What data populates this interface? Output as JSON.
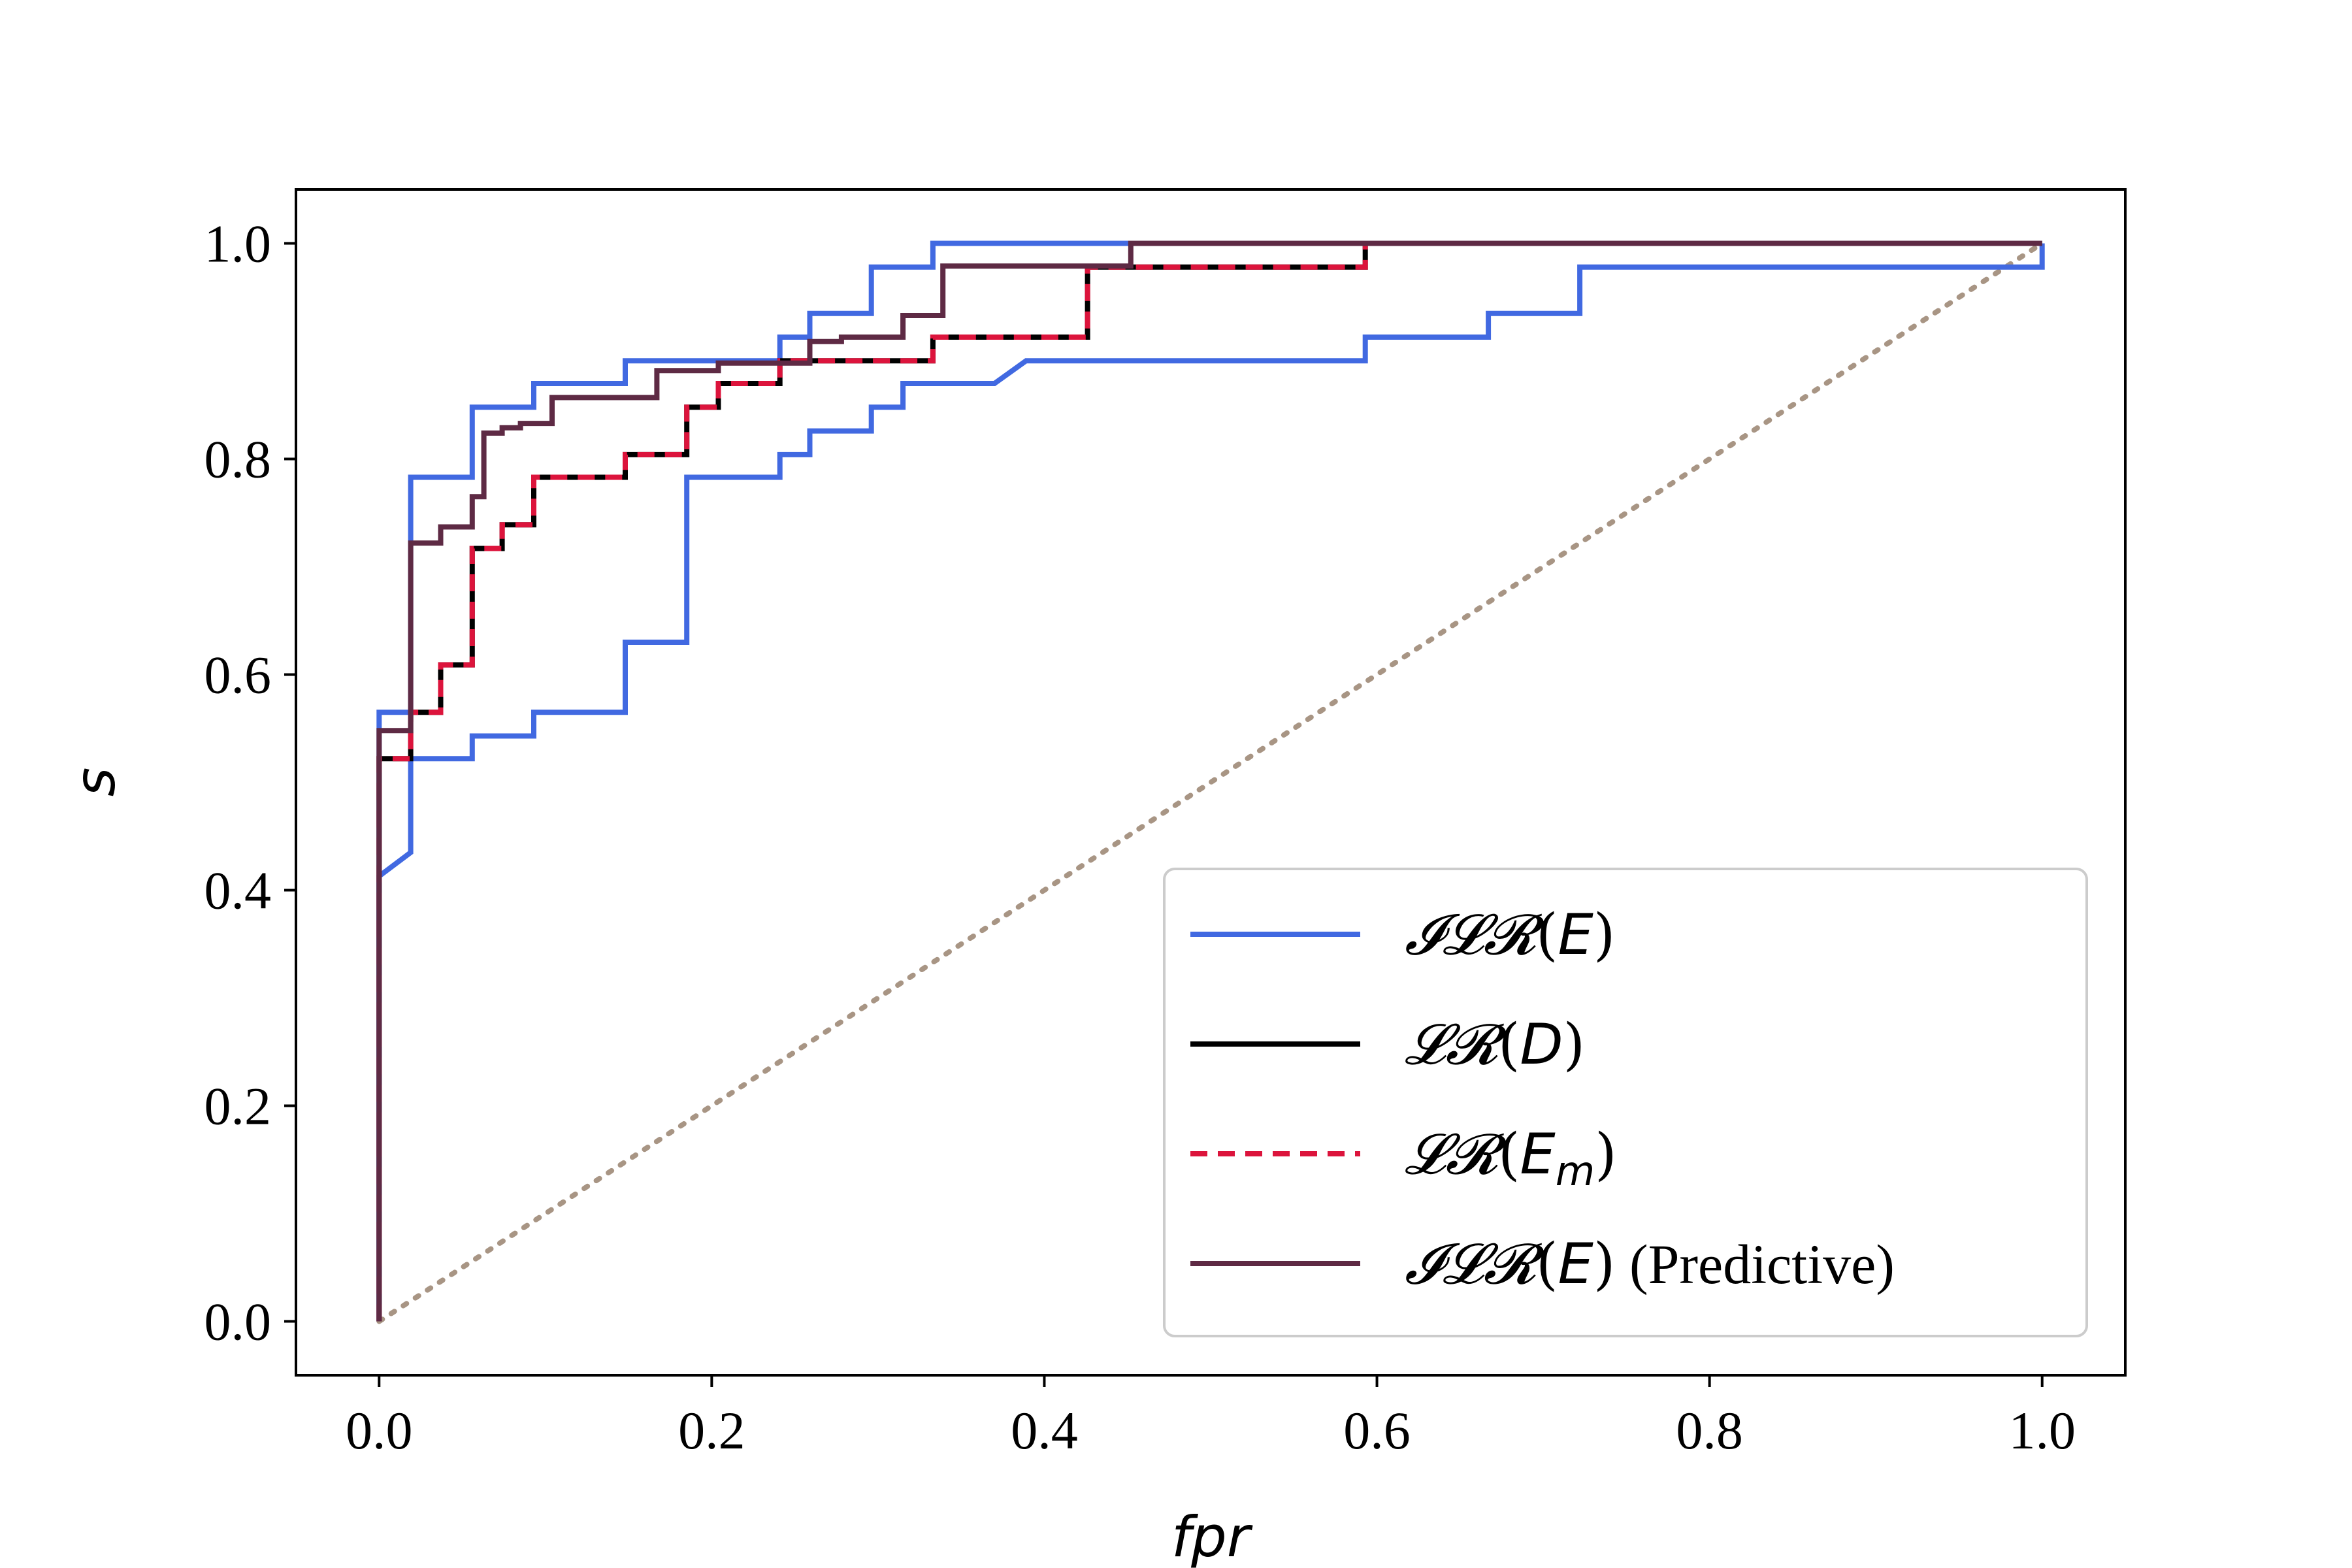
{
  "chart_data": {
    "type": "line",
    "xlabel": "fpr",
    "ylabel": "s",
    "xlim": [
      -0.05,
      1.05
    ],
    "ylim": [
      -0.05,
      1.05
    ],
    "xticks": [
      "0.0",
      "0.2",
      "0.4",
      "0.6",
      "0.8",
      "1.0"
    ],
    "yticks": [
      "0.0",
      "0.2",
      "0.4",
      "0.6",
      "0.8",
      "1.0"
    ],
    "grid": false,
    "legend_position": "lower-right",
    "series": [
      {
        "name": "ILR(E)",
        "legend": {
          "script": "𝓘𝓛𝓡",
          "arg": "E",
          "sub": "",
          "suffix": ""
        },
        "color": "#4169E1",
        "style": "solid",
        "step": true,
        "x": [
          0.0,
          0.0,
          0.019,
          0.019,
          0.056,
          0.056,
          0.093,
          0.093,
          0.148,
          0.148,
          0.185,
          0.185,
          0.241,
          0.241,
          0.259,
          0.259,
          0.296,
          0.296,
          0.315,
          0.315,
          0.37,
          0.389,
          0.593,
          0.593,
          0.667,
          0.667,
          0.722,
          0.722,
          1.0,
          1.0
        ],
        "y": [
          0.0,
          0.413,
          0.435,
          0.522,
          0.522,
          0.543,
          0.543,
          0.565,
          0.565,
          0.63,
          0.63,
          0.783,
          0.783,
          0.804,
          0.804,
          0.826,
          0.826,
          0.848,
          0.848,
          0.87,
          0.87,
          0.891,
          0.891,
          0.913,
          0.913,
          0.935,
          0.935,
          0.978,
          0.978,
          1.0
        ]
      },
      {
        "name": "ILR(E) upper",
        "legend": null,
        "color": "#4169E1",
        "style": "solid",
        "step": true,
        "x": [
          0.0,
          0.0,
          0.019,
          0.019,
          0.056,
          0.056,
          0.093,
          0.093,
          0.148,
          0.148,
          0.241,
          0.241,
          0.259,
          0.259,
          0.296,
          0.296,
          0.333,
          0.333,
          1.0
        ],
        "y": [
          0.0,
          0.565,
          0.565,
          0.783,
          0.783,
          0.848,
          0.848,
          0.87,
          0.87,
          0.891,
          0.891,
          0.913,
          0.913,
          0.935,
          0.935,
          0.978,
          0.978,
          1.0,
          1.0
        ]
      },
      {
        "name": "LR(D)",
        "legend": {
          "script": "𝓛𝓡",
          "arg": "D",
          "sub": "",
          "suffix": ""
        },
        "color": "#000000",
        "style": "solid",
        "step": true,
        "x": [
          0.0,
          0.0,
          0.019,
          0.019,
          0.037,
          0.037,
          0.056,
          0.056,
          0.074,
          0.074,
          0.093,
          0.093,
          0.111,
          0.111,
          0.148,
          0.148,
          0.185,
          0.185,
          0.204,
          0.204,
          0.241,
          0.241,
          0.333,
          0.333,
          0.426,
          0.426,
          0.593,
          0.593,
          1.0
        ],
        "y": [
          0.0,
          0.522,
          0.522,
          0.565,
          0.565,
          0.609,
          0.609,
          0.717,
          0.717,
          0.739,
          0.739,
          0.783,
          0.783,
          0.783,
          0.783,
          0.804,
          0.804,
          0.848,
          0.848,
          0.87,
          0.87,
          0.891,
          0.891,
          0.913,
          0.913,
          0.978,
          0.978,
          1.0,
          1.0
        ]
      },
      {
        "name": "LR(Em)",
        "legend": {
          "script": "𝓛𝓡",
          "arg": "E",
          "sub": "m",
          "suffix": ""
        },
        "color": "#DC143C",
        "style": "dashed",
        "step": true,
        "x": [
          0.0,
          0.0,
          0.019,
          0.019,
          0.037,
          0.037,
          0.056,
          0.056,
          0.074,
          0.074,
          0.093,
          0.093,
          0.111,
          0.111,
          0.148,
          0.148,
          0.185,
          0.185,
          0.204,
          0.204,
          0.241,
          0.241,
          0.333,
          0.333,
          0.426,
          0.426,
          0.593,
          0.593,
          1.0
        ],
        "y": [
          0.0,
          0.522,
          0.522,
          0.565,
          0.565,
          0.609,
          0.609,
          0.717,
          0.717,
          0.739,
          0.739,
          0.783,
          0.783,
          0.783,
          0.783,
          0.804,
          0.804,
          0.848,
          0.848,
          0.87,
          0.87,
          0.891,
          0.891,
          0.913,
          0.913,
          0.978,
          0.978,
          1.0,
          1.0
        ]
      },
      {
        "name": "ILR(E) (Predictive)",
        "legend": {
          "script": "𝓘𝓛𝓡",
          "arg": "E",
          "sub": "",
          "suffix": " (Predictive)"
        },
        "color": "#5E2A44",
        "style": "solid",
        "step": true,
        "x": [
          0.0,
          0.0,
          0.019,
          0.019,
          0.037,
          0.037,
          0.056,
          0.056,
          0.063,
          0.063,
          0.074,
          0.074,
          0.085,
          0.085,
          0.104,
          0.104,
          0.167,
          0.167,
          0.204,
          0.204,
          0.259,
          0.259,
          0.278,
          0.278,
          0.315,
          0.315,
          0.339,
          0.339,
          0.452,
          0.452,
          1.0
        ],
        "y": [
          0.0,
          0.548,
          0.548,
          0.722,
          0.722,
          0.737,
          0.737,
          0.765,
          0.765,
          0.824,
          0.824,
          0.829,
          0.829,
          0.833,
          0.833,
          0.857,
          0.857,
          0.882,
          0.882,
          0.889,
          0.889,
          0.909,
          0.909,
          0.913,
          0.913,
          0.933,
          0.933,
          0.979,
          0.979,
          1.0,
          1.0
        ]
      },
      {
        "name": "chance",
        "legend": null,
        "color": "#A89584",
        "style": "dotted",
        "step": false,
        "x": [
          0.0,
          1.0
        ],
        "y": [
          0.0,
          1.0
        ]
      }
    ]
  }
}
